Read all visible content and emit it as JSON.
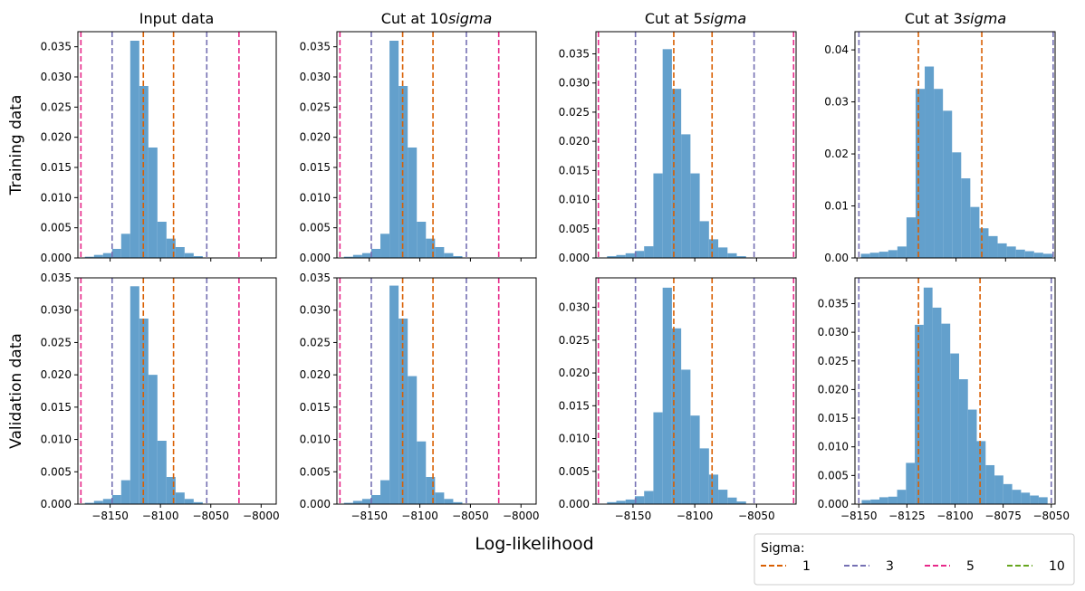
{
  "figure": {
    "xlabel": "Log-likelihood",
    "row_labels": [
      "Training data",
      "Validation data"
    ],
    "col_titles": [
      {
        "text": "Input data",
        "suffix": ""
      },
      {
        "text": "Cut at 10",
        "suffix": "sigma"
      },
      {
        "text": "Cut at 5",
        "suffix": "sigma"
      },
      {
        "text": "Cut at 3",
        "suffix": "sigma"
      }
    ]
  },
  "legend": {
    "title": "Sigma:",
    "placement": "lower-right",
    "entries": [
      {
        "label": "1",
        "color": "#d95f02"
      },
      {
        "label": "3",
        "color": "#7570b3"
      },
      {
        "label": "5",
        "color": "#e7298a"
      },
      {
        "label": "10",
        "color": "#66a61e"
      }
    ]
  },
  "style": {
    "bar_color": "#5b9bc9",
    "bar_opacity": 0.95
  },
  "chart_data": [
    {
      "type": "bar",
      "row": "Training data",
      "title": "Input data",
      "xlim": [
        -8182,
        -7985
      ],
      "ylim": [
        0,
        0.0375
      ],
      "yticks": [
        0,
        0.005,
        0.01,
        0.015,
        0.02,
        0.025,
        0.03,
        0.035
      ],
      "xticks": [
        -8150,
        -8100,
        -8050,
        -8000
      ],
      "xtick_labels_shown": false,
      "bin_start": -8175,
      "bin_width": 9,
      "values": [
        0.0002,
        0.0005,
        0.0008,
        0.0015,
        0.004,
        0.036,
        0.0285,
        0.0183,
        0.006,
        0.0032,
        0.0018,
        0.0008,
        0.0003
      ],
      "vlines": [
        {
          "sigma": "1",
          "x": [
            -8117,
            -8087
          ]
        },
        {
          "sigma": "3",
          "x": [
            -8148,
            -8054
          ]
        },
        {
          "sigma": "5",
          "x": [
            -8179,
            -8022
          ]
        }
      ]
    },
    {
      "type": "bar",
      "row": "Training data",
      "title": "Cut at 10sigma",
      "xlim": [
        -8182,
        -7985
      ],
      "ylim": [
        0,
        0.0375
      ],
      "yticks": [
        0,
        0.005,
        0.01,
        0.015,
        0.02,
        0.025,
        0.03,
        0.035
      ],
      "xticks": [
        -8150,
        -8100,
        -8050,
        -8000
      ],
      "xtick_labels_shown": false,
      "bin_start": -8175,
      "bin_width": 9,
      "values": [
        0.0002,
        0.0005,
        0.0008,
        0.0015,
        0.004,
        0.036,
        0.0285,
        0.0183,
        0.006,
        0.0032,
        0.0018,
        0.0008,
        0.0003
      ],
      "vlines": [
        {
          "sigma": "1",
          "x": [
            -8117,
            -8087
          ]
        },
        {
          "sigma": "3",
          "x": [
            -8148,
            -8054
          ]
        },
        {
          "sigma": "5",
          "x": [
            -8179,
            -8022
          ]
        }
      ]
    },
    {
      "type": "bar",
      "row": "Training data",
      "title": "Cut at 5sigma",
      "xlim": [
        -8180,
        -8018
      ],
      "ylim": [
        0,
        0.0388
      ],
      "yticks": [
        0,
        0.005,
        0.01,
        0.015,
        0.02,
        0.025,
        0.03,
        0.035
      ],
      "xticks": [
        -8150,
        -8100,
        -8050
      ],
      "xtick_labels_shown": false,
      "bin_start": -8171,
      "bin_width": 7.5,
      "values": [
        0.0003,
        0.0005,
        0.0008,
        0.0012,
        0.002,
        0.0145,
        0.0358,
        0.029,
        0.0212,
        0.0145,
        0.0063,
        0.0032,
        0.0018,
        0.0008,
        0.0003
      ],
      "vlines": [
        {
          "sigma": "1",
          "x": [
            -8117,
            -8086
          ]
        },
        {
          "sigma": "3",
          "x": [
            -8148,
            -8052
          ]
        },
        {
          "sigma": "5",
          "x": [
            -8178,
            -8020
          ]
        }
      ]
    },
    {
      "type": "bar",
      "row": "Training data",
      "title": "Cut at 3sigma",
      "xlim": [
        -8151,
        -8050
      ],
      "ylim": [
        0,
        0.0435
      ],
      "yticks": [
        0,
        0.01,
        0.02,
        0.03,
        0.04
      ],
      "xticks": [
        -8150,
        -8125,
        -8100,
        -8075,
        -8050
      ],
      "xtick_labels_shown": false,
      "bin_start": -8148,
      "bin_width": 4.6,
      "values": [
        0.0008,
        0.001,
        0.0012,
        0.0015,
        0.0022,
        0.0078,
        0.0325,
        0.0368,
        0.0325,
        0.0283,
        0.0203,
        0.0153,
        0.0098,
        0.0057,
        0.0042,
        0.0028,
        0.0022,
        0.0016,
        0.0013,
        0.001,
        0.0008
      ],
      "vlines": [
        {
          "sigma": "1",
          "x": [
            -8119,
            -8087
          ]
        },
        {
          "sigma": "3",
          "x": [
            -8149,
            -8051
          ]
        }
      ]
    },
    {
      "type": "bar",
      "row": "Validation data",
      "title": "Input data",
      "xlim": [
        -8182,
        -7985
      ],
      "ylim": [
        0,
        0.035
      ],
      "yticks": [
        0,
        0.005,
        0.01,
        0.015,
        0.02,
        0.025,
        0.03,
        0.035
      ],
      "xticks": [
        -8150,
        -8100,
        -8050,
        -8000
      ],
      "xtick_labels_shown": true,
      "bin_start": -8175,
      "bin_width": 9,
      "values": [
        0.0002,
        0.0005,
        0.0008,
        0.0014,
        0.0037,
        0.0337,
        0.0287,
        0.02,
        0.0098,
        0.0042,
        0.0018,
        0.0008,
        0.0003
      ],
      "vlines": [
        {
          "sigma": "1",
          "x": [
            -8117,
            -8087
          ]
        },
        {
          "sigma": "3",
          "x": [
            -8148,
            -8054
          ]
        },
        {
          "sigma": "5",
          "x": [
            -8179,
            -8022
          ]
        }
      ]
    },
    {
      "type": "bar",
      "row": "Validation data",
      "title": "Cut at 10sigma",
      "xlim": [
        -8182,
        -7985
      ],
      "ylim": [
        0,
        0.035
      ],
      "yticks": [
        0,
        0.005,
        0.01,
        0.015,
        0.02,
        0.025,
        0.03,
        0.035
      ],
      "xticks": [
        -8150,
        -8100,
        -8050,
        -8000
      ],
      "xtick_labels_shown": true,
      "bin_start": -8175,
      "bin_width": 9,
      "values": [
        0.0002,
        0.0005,
        0.0008,
        0.0014,
        0.0037,
        0.0338,
        0.0287,
        0.0198,
        0.0097,
        0.0042,
        0.0018,
        0.0008,
        0.0003
      ],
      "vlines": [
        {
          "sigma": "1",
          "x": [
            -8117,
            -8087
          ]
        },
        {
          "sigma": "3",
          "x": [
            -8148,
            -8054
          ]
        },
        {
          "sigma": "5",
          "x": [
            -8179,
            -8022
          ]
        }
      ]
    },
    {
      "type": "bar",
      "row": "Validation data",
      "title": "Cut at 5sigma",
      "xlim": [
        -8180,
        -8018
      ],
      "ylim": [
        0,
        0.0345
      ],
      "yticks": [
        0,
        0.005,
        0.01,
        0.015,
        0.02,
        0.025,
        0.03
      ],
      "xticks": [
        -8150,
        -8100,
        -8050
      ],
      "xtick_labels_shown": true,
      "bin_start": -8171,
      "bin_width": 7.5,
      "values": [
        0.0003,
        0.0005,
        0.0007,
        0.0012,
        0.002,
        0.014,
        0.033,
        0.0268,
        0.0205,
        0.0135,
        0.0085,
        0.0045,
        0.0022,
        0.001,
        0.0004
      ],
      "vlines": [
        {
          "sigma": "1",
          "x": [
            -8117,
            -8086
          ]
        },
        {
          "sigma": "3",
          "x": [
            -8148,
            -8052
          ]
        },
        {
          "sigma": "5",
          "x": [
            -8178,
            -8020
          ]
        }
      ]
    },
    {
      "type": "bar",
      "row": "Validation data",
      "title": "Cut at 3sigma",
      "xlim": [
        -8152,
        -8048
      ],
      "ylim": [
        0,
        0.0395
      ],
      "yticks": [
        0,
        0.005,
        0.01,
        0.015,
        0.02,
        0.025,
        0.03,
        0.035
      ],
      "xticks": [
        -8150,
        -8125,
        -8100,
        -8075,
        -8050
      ],
      "xtick_labels_shown": true,
      "bin_start": -8148.5,
      "bin_width": 4.6,
      "values": [
        0.0007,
        0.0008,
        0.0012,
        0.0013,
        0.0025,
        0.0072,
        0.0313,
        0.0378,
        0.0343,
        0.0315,
        0.0263,
        0.0218,
        0.0165,
        0.011,
        0.0068,
        0.005,
        0.0035,
        0.0025,
        0.002,
        0.0015,
        0.0012
      ],
      "vlines": [
        {
          "sigma": "1",
          "x": [
            -8119,
            -8087
          ]
        },
        {
          "sigma": "3",
          "x": [
            -8150,
            -8050
          ]
        }
      ]
    }
  ]
}
